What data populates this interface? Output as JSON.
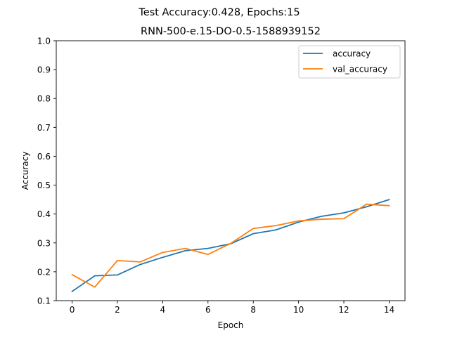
{
  "figure": {
    "suptitle": "Test Accuracy:0.428, Epochs:15"
  },
  "chart_data": {
    "type": "line",
    "title": "RNN-500-e.15-DO-0.5-1588939152",
    "xlabel": "Epoch",
    "ylabel": "Accuracy",
    "xlim": [
      -0.7,
      14.7
    ],
    "ylim": [
      0.1,
      1.0
    ],
    "xticks": [
      0,
      2,
      4,
      6,
      8,
      10,
      12,
      14
    ],
    "yticks": [
      0.1,
      0.2,
      0.3,
      0.4,
      0.5,
      0.6,
      0.7,
      0.8,
      0.9,
      1.0
    ],
    "grid": false,
    "legend_position": "top-right",
    "x": [
      0,
      1,
      2,
      3,
      4,
      5,
      6,
      7,
      8,
      9,
      10,
      11,
      12,
      13,
      14
    ],
    "series": [
      {
        "name": "accuracy",
        "color": "#1f77b4",
        "values": [
          0.132,
          0.186,
          0.189,
          0.225,
          0.25,
          0.273,
          0.281,
          0.297,
          0.332,
          0.345,
          0.372,
          0.392,
          0.404,
          0.425,
          0.45
        ]
      },
      {
        "name": "val_accuracy",
        "color": "#ff7f0e",
        "values": [
          0.19,
          0.147,
          0.239,
          0.234,
          0.267,
          0.281,
          0.26,
          0.298,
          0.35,
          0.36,
          0.376,
          0.382,
          0.384,
          0.434,
          0.429
        ]
      }
    ]
  }
}
